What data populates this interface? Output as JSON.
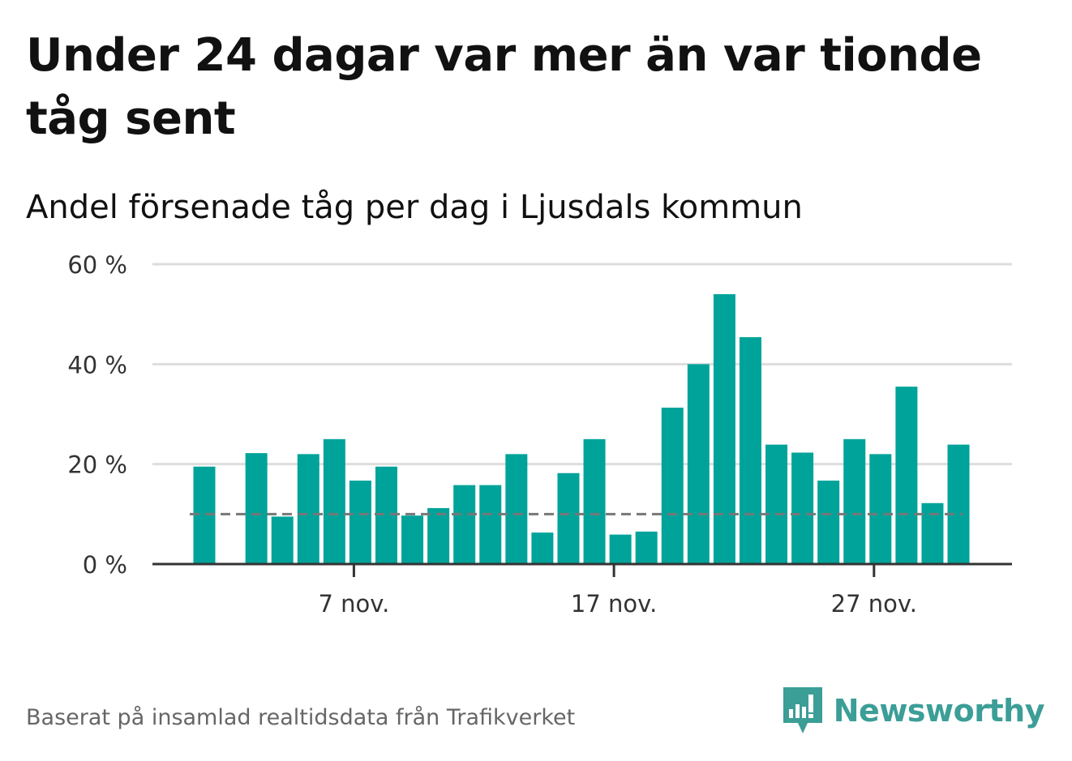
{
  "title": "Under 24 dagar var mer än var tionde tåg sent",
  "subtitle": "Andel försenade tåg per dag i Ljusdals kommun",
  "footer": "Baserat på insamlad realtidsdata från Trafikverket",
  "brand": {
    "name": "Newsworthy",
    "color": "#3b9e97"
  },
  "colors": {
    "bar": "#00a39a",
    "reference_line": "#777777",
    "grid": "#dddddd",
    "axis": "#333333"
  },
  "chart_data": {
    "type": "bar",
    "x_unit": "day of November",
    "x": [
      1,
      2,
      3,
      4,
      5,
      6,
      7,
      8,
      9,
      10,
      11,
      12,
      13,
      14,
      15,
      16,
      17,
      18,
      19,
      20,
      21,
      22,
      23,
      24,
      25,
      26,
      27,
      28,
      29,
      30
    ],
    "values": [
      19.5,
      0,
      22.2,
      9.5,
      22,
      25,
      16.7,
      19.5,
      9.7,
      11.2,
      15.8,
      15.8,
      22,
      6.3,
      18.2,
      25,
      5.9,
      6.5,
      31.3,
      40,
      54,
      45.4,
      23.9,
      22.3,
      16.7,
      25,
      22,
      35.5,
      12.2,
      23.9
    ],
    "reference_line": 10,
    "ylim": [
      0,
      60
    ],
    "yticks": [
      {
        "value": 0,
        "label": "0 %"
      },
      {
        "value": 20,
        "label": "20 %"
      },
      {
        "value": 40,
        "label": "40 %"
      },
      {
        "value": 60,
        "label": "60 %"
      }
    ],
    "xticks": [
      {
        "x": 7,
        "label": "7 nov."
      },
      {
        "x": 17,
        "label": "17 nov."
      },
      {
        "x": 27,
        "label": "27 nov."
      }
    ],
    "grid": true,
    "legend": "none"
  }
}
